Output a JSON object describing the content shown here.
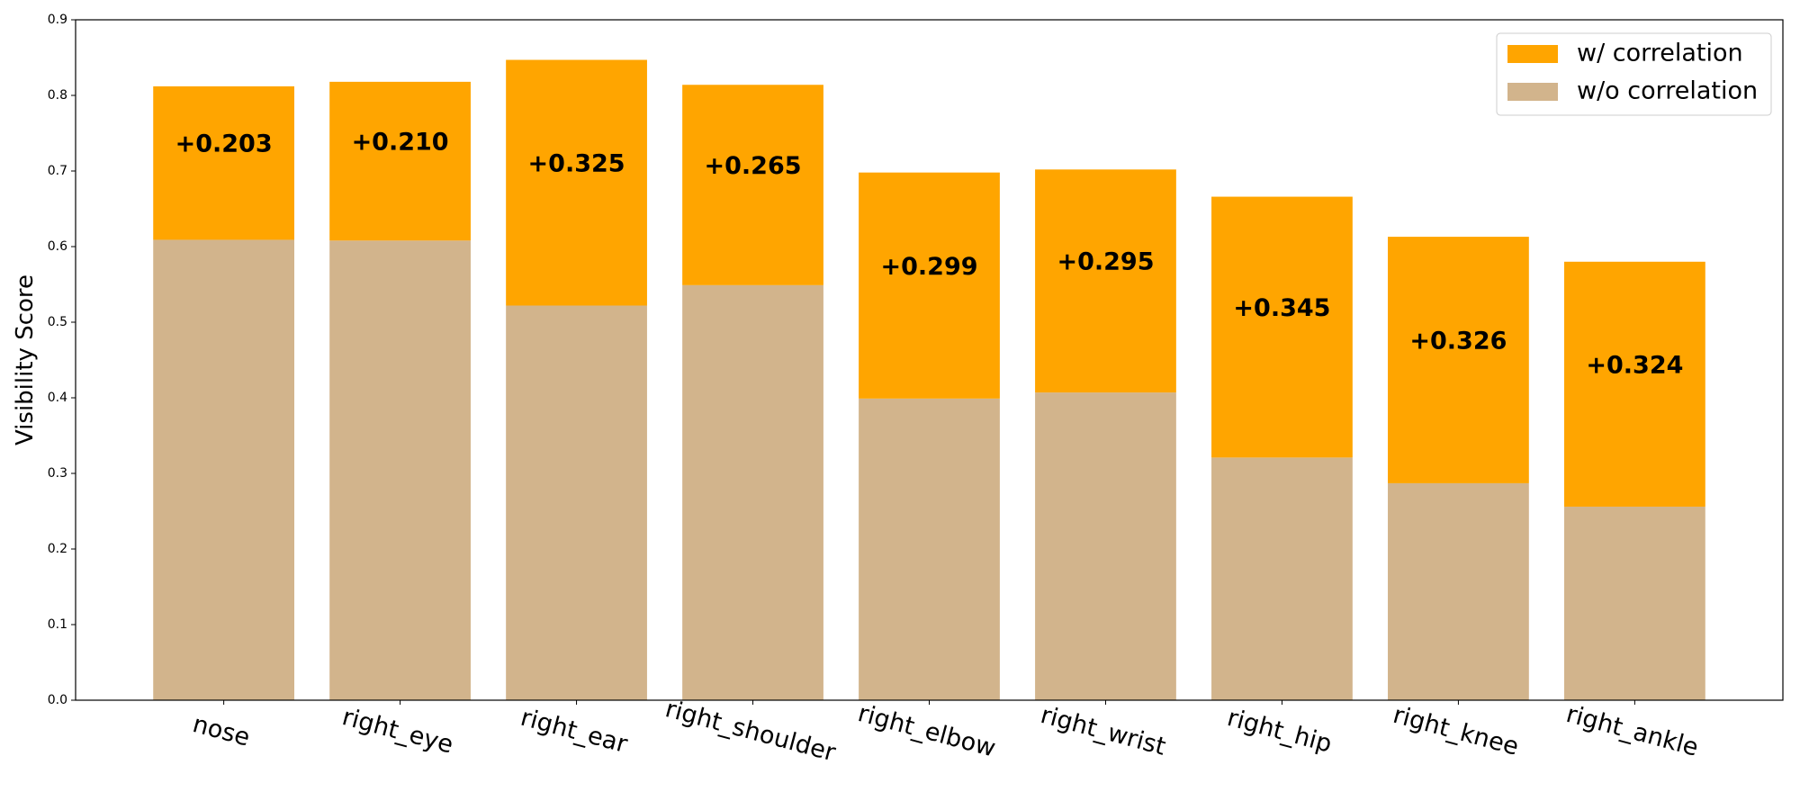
{
  "chart_data": {
    "type": "stacked_bar",
    "y_label": "Visibility Score",
    "categories": [
      "nose",
      "right_eye",
      "right_ear",
      "right_shoulder",
      "right_elbow",
      "right_wrist",
      "right_hip",
      "right_knee",
      "right_ankle"
    ],
    "series": [
      {
        "name": "w/o correlation",
        "color": "#d2b48c",
        "values": [
          0.609,
          0.608,
          0.522,
          0.549,
          0.399,
          0.407,
          0.321,
          0.287,
          0.256
        ]
      },
      {
        "name": "w/ correlation",
        "color": "#ffa500",
        "values": [
          0.203,
          0.21,
          0.325,
          0.265,
          0.299,
          0.295,
          0.345,
          0.326,
          0.324
        ],
        "value_labels": [
          "+0.203",
          "+0.210",
          "+0.325",
          "+0.265",
          "+0.299",
          "+0.295",
          "+0.345",
          "+0.326",
          "+0.324"
        ]
      }
    ],
    "ylim": [
      0,
      0.9
    ],
    "yticks": [
      {
        "value": 0,
        "label": "0.0"
      },
      0.1,
      0.2,
      0.3,
      0.4,
      0.5,
      0.6,
      0.7,
      0.8,
      0.9
    ],
    "legend": "upper right"
  }
}
